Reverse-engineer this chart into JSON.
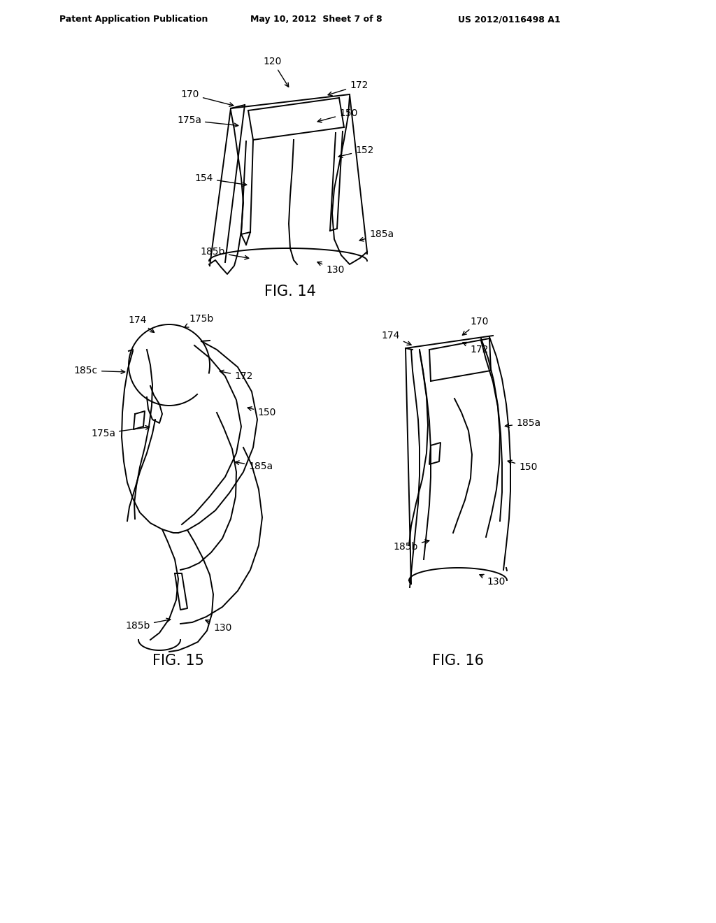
{
  "background_color": "#ffffff",
  "header_left": "Patent Application Publication",
  "header_center": "May 10, 2012  Sheet 7 of 8",
  "header_right": "US 2012/0116498 A1",
  "fig14_label": "FIG. 14",
  "fig15_label": "FIG. 15",
  "fig16_label": "FIG. 16",
  "line_color": "#000000",
  "header_fontsize": 9,
  "fig_label_fontsize": 15,
  "annotation_fontsize": 10
}
